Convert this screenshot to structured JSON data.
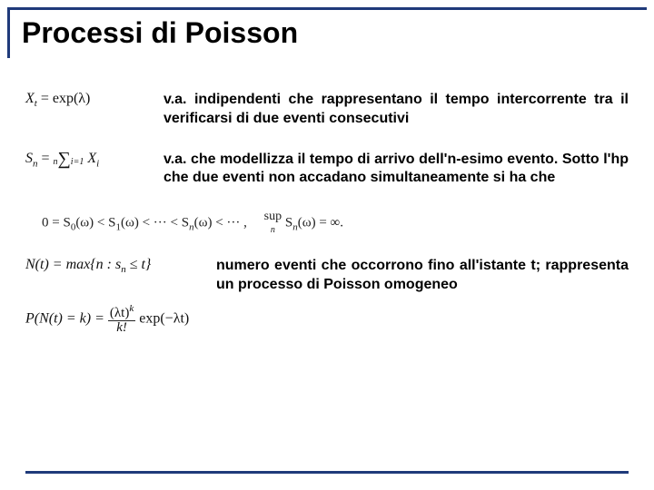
{
  "slide": {
    "title": "Processi di Poisson",
    "colors": {
      "accent": "#1f3a7a",
      "text": "#000000",
      "background": "#ffffff"
    },
    "rows": [
      {
        "formula": {
          "lhs": "X",
          "sub1": "t",
          "eq": " = exp(λ)"
        },
        "description": "v.a. indipendenti che rappresentano il tempo intercorrente tra il verificarsi di due eventi consecutivi"
      },
      {
        "formula": {
          "lhs": "S",
          "sub1": "n",
          "eq": " = ",
          "sum_top": "n",
          "sum_bot": "i=1",
          "rhs": "X",
          "sub2": "i"
        },
        "description": "v.a. che modellizza il tempo di arrivo dell'n-esimo evento. Sotto l'hp che due eventi non accadano simultaneamente si ha che"
      }
    ],
    "inequality": {
      "parts": [
        "0 = S",
        "0",
        "(ω) < S",
        "1",
        "(ω) < ··· < S",
        "n",
        "(ω) < ··· ,"
      ],
      "sup_label": "sup",
      "sup_sub": "n",
      "sup_rhs_prefix": " S",
      "sup_rhs_sub": "n",
      "sup_rhs_suffix": "(ω) = ∞."
    },
    "row3": {
      "formula": {
        "lhs": "N(t) = max{n : s",
        "sub": "n",
        "rhs": " ≤ t}"
      },
      "description": "numero eventi che occorrono fino all'istante t; rappresenta un processo di Poisson omogeneo"
    },
    "prob": {
      "lhs": "P(N(t) = k) = ",
      "num_a": "(λt)",
      "num_exp": "k",
      "den": "k!",
      "tail": " exp(−λt)"
    }
  }
}
